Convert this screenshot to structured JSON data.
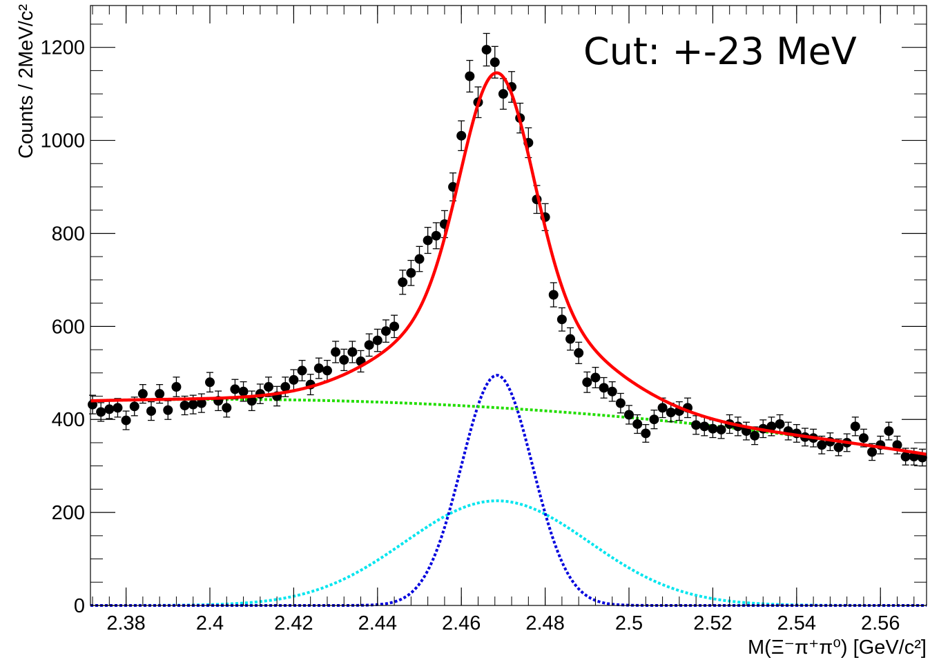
{
  "chart_data": {
    "type": "scatter",
    "annotation": "Cut: +-23 MeV",
    "xlabel": "M(Ξ⁻π⁺π⁰) [GeV/c²]",
    "ylabel": "Counts / 2MeV/c²",
    "xlim": [
      2.3715,
      2.571
    ],
    "ylim": [
      0,
      1290
    ],
    "x_ticks": [
      2.38,
      2.4,
      2.42,
      2.44,
      2.46,
      2.48,
      2.5,
      2.52,
      2.54,
      2.56
    ],
    "x_tick_labels": [
      "2.38",
      "2.4",
      "2.42",
      "2.44",
      "2.46",
      "2.48",
      "2.5",
      "2.52",
      "2.54",
      "2.56"
    ],
    "y_ticks": [
      0,
      200,
      400,
      600,
      800,
      1000,
      1200
    ],
    "y_tick_labels": [
      "0",
      "200",
      "400",
      "600",
      "800",
      "1000",
      "1200"
    ],
    "grid": false,
    "legend": "none",
    "colors": {
      "data": "#000000",
      "total_fit": "#ff0000",
      "background": "#22dd00",
      "signal_narrow": "#0000dd",
      "signal_wide": "#00e5ee"
    },
    "series": [
      {
        "kind": "points_with_errors",
        "x": [
          2.372,
          2.374,
          2.376,
          2.378,
          2.38,
          2.382,
          2.384,
          2.386,
          2.388,
          2.39,
          2.392,
          2.394,
          2.396,
          2.398,
          2.4,
          2.402,
          2.404,
          2.406,
          2.408,
          2.41,
          2.412,
          2.414,
          2.416,
          2.418,
          2.42,
          2.422,
          2.424,
          2.426,
          2.428,
          2.43,
          2.432,
          2.434,
          2.436,
          2.438,
          2.44,
          2.442,
          2.444,
          2.446,
          2.448,
          2.45,
          2.452,
          2.454,
          2.456,
          2.458,
          2.46,
          2.462,
          2.464,
          2.466,
          2.468,
          2.47,
          2.472,
          2.474,
          2.476,
          2.478,
          2.48,
          2.482,
          2.484,
          2.486,
          2.488,
          2.49,
          2.492,
          2.494,
          2.496,
          2.498,
          2.5,
          2.502,
          2.504,
          2.506,
          2.508,
          2.51,
          2.512,
          2.514,
          2.516,
          2.518,
          2.52,
          2.522,
          2.524,
          2.526,
          2.528,
          2.53,
          2.532,
          2.534,
          2.536,
          2.538,
          2.54,
          2.542,
          2.544,
          2.546,
          2.548,
          2.55,
          2.552,
          2.554,
          2.556,
          2.558,
          2.56,
          2.562,
          2.564,
          2.566,
          2.568,
          2.57
        ],
        "y": [
          432,
          416,
          422,
          425,
          398,
          428,
          455,
          418,
          455,
          420,
          470,
          430,
          432,
          435,
          480,
          440,
          425,
          465,
          460,
          440,
          455,
          470,
          450,
          470,
          485,
          505,
          475,
          510,
          505,
          545,
          528,
          545,
          525,
          560,
          570,
          590,
          600,
          695,
          715,
          745,
          785,
          795,
          820,
          900,
          1010,
          1138,
          1082,
          1195,
          1168,
          1100,
          1115,
          1048,
          995,
          873,
          835,
          668,
          615,
          573,
          543,
          480,
          490,
          468,
          460,
          435,
          410,
          390,
          370,
          400,
          425,
          415,
          418,
          425,
          388,
          385,
          380,
          378,
          390,
          385,
          375,
          365,
          380,
          385,
          390,
          375,
          370,
          362,
          360,
          345,
          352,
          340,
          350,
          385,
          360,
          330,
          345,
          375,
          345,
          320,
          320,
          318
        ],
        "yerr": [
          20,
          20,
          20,
          20,
          20,
          20,
          20,
          20,
          20,
          20,
          21,
          20,
          20,
          20,
          21,
          21,
          20,
          21,
          21,
          21,
          21,
          21,
          21,
          21,
          22,
          22,
          22,
          22,
          22,
          23,
          23,
          23,
          23,
          24,
          24,
          24,
          24,
          26,
          27,
          27,
          28,
          28,
          29,
          30,
          32,
          34,
          33,
          35,
          34,
          33,
          33,
          32,
          32,
          30,
          29,
          26,
          25,
          24,
          23,
          22,
          22,
          22,
          21,
          21,
          20,
          20,
          19,
          20,
          21,
          20,
          20,
          21,
          20,
          20,
          19,
          19,
          20,
          20,
          19,
          19,
          19,
          20,
          20,
          19,
          19,
          19,
          19,
          19,
          19,
          18,
          19,
          20,
          19,
          18,
          19,
          19,
          19,
          18,
          18,
          18
        ]
      },
      {
        "name": "",
        "kind": "total_fit",
        "style": "solid",
        "x_range": [
          2.3715,
          2.571
        ]
      },
      {
        "name": "",
        "kind": "background",
        "style": "dotted",
        "x_range": [
          2.3715,
          2.571
        ]
      },
      {
        "name": "",
        "kind": "signal_narrow",
        "style": "dotted",
        "peak_x": 2.4685,
        "peak_y": 495,
        "sigma": 0.0085
      },
      {
        "name": "",
        "kind": "signal_wide",
        "style": "dotted",
        "peak_x": 2.4685,
        "peak_y": 225,
        "sigma": 0.022
      }
    ]
  }
}
